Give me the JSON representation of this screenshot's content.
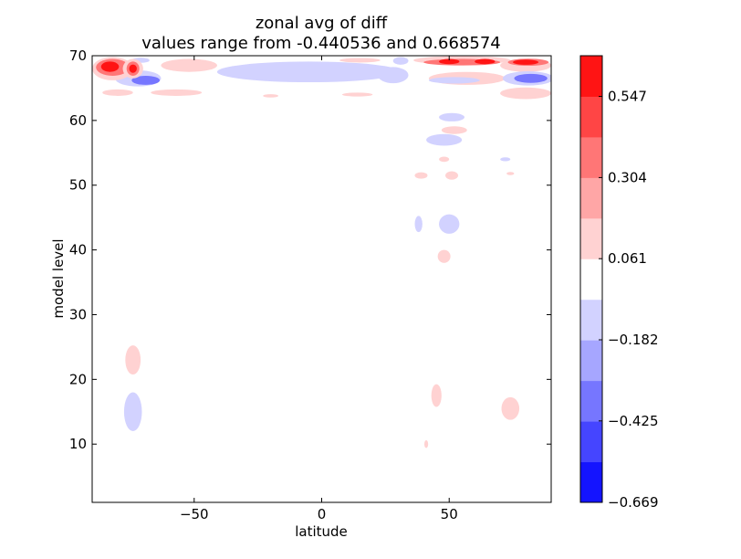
{
  "chart_data": {
    "type": "heatmap",
    "title": "zonal avg of diff",
    "subtitle": "values range from -0.440536 and 0.668574",
    "xlabel": "latitude",
    "ylabel": "model level",
    "xlim": [
      -90,
      90
    ],
    "ylim": [
      1,
      70
    ],
    "x_ticks": [
      -50,
      0,
      50
    ],
    "x_tick_labels": [
      "−50",
      "0",
      "50"
    ],
    "y_ticks": [
      10,
      20,
      30,
      40,
      50,
      60,
      70
    ],
    "y_tick_labels": [
      "10",
      "20",
      "30",
      "40",
      "50",
      "60",
      "70"
    ],
    "grid": false,
    "colorbar": {
      "placement": "right",
      "vmin": -0.669,
      "vmax": 0.669,
      "levels": 11,
      "tick_values": [
        -0.669,
        -0.425,
        -0.182,
        0.061,
        0.304,
        0.547
      ],
      "tick_labels": [
        "−0.669",
        "−0.425",
        "−0.182",
        "0.061",
        "0.304",
        "0.547"
      ],
      "colors": [
        "#1414ff",
        "#4545ff",
        "#7676ff",
        "#a6a6ff",
        "#d2d2ff",
        "#ffffff",
        "#ffd2d2",
        "#ffa6a6",
        "#ff7676",
        "#ff4545",
        "#ff1414"
      ]
    },
    "regions": [
      {
        "lat": -74,
        "lev": 23,
        "w": 6,
        "h": 4.5,
        "value": 0.12
      },
      {
        "lat": -74,
        "lev": 15,
        "w": 7,
        "h": 6,
        "value": -0.12
      },
      {
        "lat": 38,
        "lev": 44,
        "w": 3,
        "h": 2.5,
        "value": -0.12
      },
      {
        "lat": 50,
        "lev": 44,
        "w": 8,
        "h": 3,
        "value": -0.12
      },
      {
        "lat": 48,
        "lev": 39,
        "w": 5,
        "h": 2,
        "value": 0.12
      },
      {
        "lat": 48,
        "lev": 57,
        "w": 14,
        "h": 1.8,
        "value": -0.12
      },
      {
        "lat": 51,
        "lev": 60.5,
        "w": 10,
        "h": 1.3,
        "value": -0.12
      },
      {
        "lat": 52,
        "lev": 58.5,
        "w": 10,
        "h": 1.2,
        "value": 0.12
      },
      {
        "lat": 48,
        "lev": 54,
        "w": 4,
        "h": 0.8,
        "value": 0.12
      },
      {
        "lat": 51,
        "lev": 51.5,
        "w": 5,
        "h": 1.3,
        "value": 0.12
      },
      {
        "lat": 39,
        "lev": 51.5,
        "w": 5,
        "h": 1,
        "value": 0.12
      },
      {
        "lat": 72,
        "lev": 54,
        "w": 4,
        "h": 0.6,
        "value": -0.12
      },
      {
        "lat": 74,
        "lev": 51.8,
        "w": 3,
        "h": 0.5,
        "value": 0.12
      },
      {
        "lat": 45,
        "lev": 17.5,
        "w": 4,
        "h": 3.5,
        "value": 0.12
      },
      {
        "lat": 74,
        "lev": 15.5,
        "w": 7,
        "h": 3.5,
        "value": 0.12
      },
      {
        "lat": 41,
        "lev": 10,
        "w": 1.5,
        "h": 1.2,
        "value": 0.12
      },
      {
        "lat": -80,
        "lev": 64.3,
        "w": 12,
        "h": 1,
        "value": 0.12
      },
      {
        "lat": -57,
        "lev": 64.3,
        "w": 20,
        "h": 1,
        "value": 0.12
      },
      {
        "lat": -20,
        "lev": 63.8,
        "w": 6,
        "h": 0.5,
        "value": 0.12
      },
      {
        "lat": 14,
        "lev": 64,
        "w": 12,
        "h": 0.6,
        "value": 0.12
      },
      {
        "lat": -52,
        "lev": 68.5,
        "w": 22,
        "h": 2,
        "value": 0.12
      },
      {
        "lat": -5,
        "lev": 67.5,
        "w": 72,
        "h": 3.2,
        "value": -0.12
      },
      {
        "lat": 28,
        "lev": 67,
        "w": 12,
        "h": 2.5,
        "value": -0.12
      },
      {
        "lat": 31,
        "lev": 69.2,
        "w": 6,
        "h": 1.2,
        "value": -0.12
      },
      {
        "lat": 15,
        "lev": 69.3,
        "w": 16,
        "h": 0.7,
        "value": 0.12
      },
      {
        "lat": -72,
        "lev": 66.5,
        "w": 18,
        "h": 2.5,
        "value": -0.12
      },
      {
        "lat": -69,
        "lev": 66.2,
        "w": 11,
        "h": 1.4,
        "value": -0.37
      },
      {
        "lat": -71,
        "lev": 69.3,
        "w": 7,
        "h": 0.8,
        "value": -0.12
      },
      {
        "lat": -82,
        "lev": 68,
        "w": 16,
        "h": 3.6,
        "value": 0.12
      },
      {
        "lat": -82,
        "lev": 68.2,
        "w": 13,
        "h": 2.6,
        "value": 0.37
      },
      {
        "lat": -83,
        "lev": 68.3,
        "w": 7,
        "h": 1.6,
        "value": 0.6
      },
      {
        "lat": -74,
        "lev": 68,
        "w": 8,
        "h": 3,
        "value": 0.12
      },
      {
        "lat": -74,
        "lev": 68,
        "w": 5,
        "h": 2.2,
        "value": 0.37
      },
      {
        "lat": -74,
        "lev": 68,
        "w": 3,
        "h": 1.3,
        "value": 0.6
      },
      {
        "lat": 55,
        "lev": 69.3,
        "w": 38,
        "h": 1.3,
        "value": 0.12
      },
      {
        "lat": 55,
        "lev": 69,
        "w": 30,
        "h": 1.0,
        "value": 0.37
      },
      {
        "lat": 50,
        "lev": 69.1,
        "w": 8,
        "h": 0.8,
        "value": 0.6
      },
      {
        "lat": 64,
        "lev": 69.1,
        "w": 8,
        "h": 0.8,
        "value": 0.6
      },
      {
        "lat": 57,
        "lev": 66.5,
        "w": 30,
        "h": 2,
        "value": 0.12
      },
      {
        "lat": 52,
        "lev": 66.2,
        "w": 20,
        "h": 1,
        "value": -0.12
      },
      {
        "lat": 80,
        "lev": 68.5,
        "w": 20,
        "h": 2,
        "value": 0.12
      },
      {
        "lat": 81,
        "lev": 69,
        "w": 16,
        "h": 1.1,
        "value": 0.37
      },
      {
        "lat": 80,
        "lev": 69,
        "w": 10,
        "h": 0.8,
        "value": 0.6
      },
      {
        "lat": 81,
        "lev": 66.5,
        "w": 20,
        "h": 2.2,
        "value": -0.12
      },
      {
        "lat": 82,
        "lev": 66.5,
        "w": 13,
        "h": 1.4,
        "value": -0.37
      },
      {
        "lat": 80,
        "lev": 64.2,
        "w": 20,
        "h": 1.8,
        "value": 0.12
      }
    ]
  }
}
